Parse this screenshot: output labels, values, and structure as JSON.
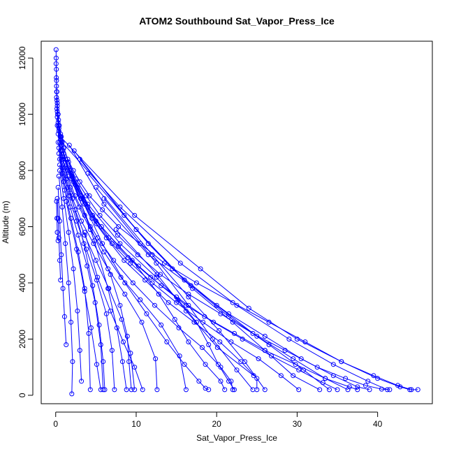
{
  "chart_data": {
    "type": "line",
    "title": "ATOM2 Southbound Sat_Vapor_Press_Ice",
    "xlabel": "Sat_Vapor_Press_Ice",
    "ylabel": "Altitude (m)",
    "xlim": [
      -1.8,
      46.8
    ],
    "ylim": [
      -300,
      12600
    ],
    "x_ticks": [
      0,
      10,
      20,
      30,
      40
    ],
    "y_ticks": [
      0,
      2000,
      4000,
      6000,
      8000,
      10000,
      12000
    ],
    "grid": false,
    "legend": "none",
    "line_color": "#0000ff",
    "marker": "open-circle",
    "series": [
      {
        "x": [
          0.05,
          0.06,
          0.08,
          0.1,
          0.15,
          0.2,
          0.3,
          0.45,
          0.7,
          1.0,
          1.5,
          2.2,
          3.0,
          4.2,
          5.8,
          7.8,
          10.5,
          13.5,
          17.5,
          22.0,
          26.5,
          31.0,
          35.5,
          39.5,
          42.5,
          44.2,
          45.0
        ],
        "y": [
          12300,
          12000,
          11600,
          11200,
          10800,
          10400,
          10000,
          9600,
          9200,
          8800,
          8400,
          8000,
          7600,
          7100,
          6600,
          6000,
          5400,
          4700,
          4000,
          3300,
          2600,
          1900,
          1200,
          700,
          350,
          200,
          200
        ]
      },
      {
        "x": [
          0.05,
          0.08,
          0.12,
          0.2,
          0.35,
          0.6,
          1.0,
          1.6,
          2.5,
          3.8,
          5.5,
          7.7,
          10.2,
          13.0,
          16.5,
          20.5,
          24.5,
          28.5,
          32.5,
          36.0,
          38.5,
          40.5,
          41.5
        ],
        "y": [
          11800,
          11300,
          10800,
          10300,
          9800,
          9300,
          8800,
          8300,
          7700,
          7100,
          6400,
          5700,
          5000,
          4300,
          3600,
          2900,
          2200,
          1600,
          1000,
          600,
          350,
          220,
          200
        ]
      },
      {
        "x": [
          0.1,
          0.15,
          0.25,
          0.4,
          0.7,
          1.2,
          2.0,
          3.1,
          4.6,
          6.6,
          9.0,
          11.8,
          15.0,
          18.5,
          22.2,
          26.0,
          29.8,
          33.5,
          36.5,
          37.5
        ],
        "y": [
          11000,
          10500,
          10000,
          9500,
          9000,
          8400,
          7800,
          7100,
          6400,
          5600,
          4900,
          4200,
          3500,
          2800,
          2200,
          1600,
          1100,
          600,
          300,
          200
        ]
      },
      {
        "x": [
          0.1,
          0.2,
          0.35,
          0.6,
          1.0,
          1.7,
          2.7,
          4.0,
          5.7,
          7.8,
          10.3,
          13.1,
          16.2,
          19.6,
          23.2,
          26.8,
          30.2,
          33.2,
          35.0
        ],
        "y": [
          10600,
          10100,
          9600,
          9100,
          8600,
          8000,
          7400,
          6700,
          6000,
          5300,
          4600,
          3900,
          3200,
          2600,
          2000,
          1400,
          900,
          450,
          200
        ]
      },
      {
        "x": [
          0.15,
          0.3,
          0.55,
          0.9,
          1.5,
          2.4,
          3.6,
          5.1,
          7.0,
          9.3,
          12.0,
          15.0,
          18.3,
          21.8,
          25.2,
          28.0,
          30.2
        ],
        "y": [
          10200,
          9700,
          9200,
          8700,
          8100,
          7500,
          6800,
          6100,
          5400,
          4700,
          4000,
          3300,
          2600,
          1900,
          1300,
          700,
          200
        ]
      },
      {
        "x": [
          0.2,
          0.4,
          0.7,
          1.2,
          2.0,
          3.1,
          4.5,
          6.3,
          8.5,
          11.1,
          14.0,
          17.2,
          20.4,
          23.0,
          25.0,
          25.0
        ],
        "y": [
          9900,
          9400,
          8900,
          8300,
          7700,
          7000,
          6300,
          5600,
          4800,
          4100,
          3300,
          2600,
          1900,
          1200,
          600,
          200
        ]
      },
      {
        "x": [
          0.2,
          0.5,
          0.9,
          1.5,
          2.4,
          3.6,
          5.2,
          7.2,
          9.6,
          12.3,
          15.3,
          18.2,
          20.5,
          21.8,
          22.0
        ],
        "y": [
          9600,
          9000,
          8400,
          7800,
          7100,
          6400,
          5600,
          4800,
          4000,
          3200,
          2400,
          1700,
          1000,
          500,
          200
        ]
      },
      {
        "x": [
          0.3,
          0.6,
          1.1,
          1.8,
          2.9,
          4.3,
          6.0,
          8.1,
          10.5,
          13.1,
          15.4,
          16.2
        ],
        "y": [
          9300,
          8700,
          8100,
          7400,
          6700,
          5900,
          5100,
          4200,
          3400,
          2500,
          1400,
          200
        ]
      },
      {
        "x": [
          0.3,
          0.7,
          1.3,
          2.1,
          3.2,
          4.7,
          6.5,
          8.6,
          10.7,
          12.4,
          12.6
        ],
        "y": [
          9000,
          8400,
          7700,
          7000,
          6200,
          5400,
          4500,
          3600,
          2600,
          1300,
          200
        ]
      },
      {
        "x": [
          0.4,
          0.8,
          1.5,
          2.4,
          3.6,
          5.0,
          6.6,
          8.2,
          9.3,
          9.8
        ],
        "y": [
          8800,
          8100,
          7400,
          6600,
          5700,
          4800,
          3800,
          2700,
          1500,
          200
        ]
      },
      {
        "x": [
          0.4,
          0.9,
          1.6,
          2.6,
          3.8,
          5.1,
          6.3,
          7.0,
          7.3
        ],
        "y": [
          8600,
          7900,
          7100,
          6200,
          5200,
          4100,
          2900,
          1600,
          200
        ]
      },
      {
        "x": [
          0.5,
          1.0,
          1.8,
          2.8,
          3.9,
          4.9,
          5.6,
          5.9
        ],
        "y": [
          8400,
          7600,
          6700,
          5700,
          4600,
          3300,
          1800,
          200
        ]
      },
      {
        "x": [
          0.5,
          1.1,
          1.9,
          2.8,
          3.6,
          4.1,
          4.3
        ],
        "y": [
          8200,
          7300,
          6300,
          5100,
          3800,
          2200,
          200
        ]
      },
      {
        "x": [
          0.5,
          1.0,
          1.6,
          2.2,
          2.7,
          3.0,
          3.2
        ],
        "y": [
          8000,
          7000,
          5800,
          4500,
          3000,
          1600,
          500
        ]
      },
      {
        "x": [
          0.4,
          0.8,
          1.2,
          1.6,
          1.9,
          2.1,
          2.0
        ],
        "y": [
          7800,
          6700,
          5400,
          4000,
          2600,
          1200,
          50
        ]
      },
      {
        "x": [
          0.3,
          0.5,
          0.7,
          0.9,
          1.1,
          1.3
        ],
        "y": [
          7400,
          6200,
          5000,
          3800,
          2800,
          1800
        ]
      },
      {
        "x": [
          0.2,
          0.3,
          0.4,
          0.5,
          0.6
        ],
        "y": [
          7000,
          6300,
          5600,
          4800,
          4100
        ]
      },
      {
        "x": [
          0.1,
          0.15,
          0.2,
          0.3
        ],
        "y": [
          6900,
          6300,
          5800,
          5500
        ]
      },
      {
        "x": [
          0.9,
          4.0,
          8.0,
          12.5,
          15.2,
          17.5,
          19.0,
          20.2,
          21.5,
          22.2
        ],
        "y": [
          8500,
          6800,
          5400,
          4200,
          3400,
          2600,
          1800,
          1100,
          500,
          200
        ]
      },
      {
        "x": [
          1.2,
          5.0,
          9.5,
          12.8,
          14.8,
          16.5,
          18.6,
          20.5,
          21.0
        ],
        "y": [
          8300,
          6200,
          4800,
          3600,
          2700,
          1900,
          1100,
          500,
          200
        ]
      },
      {
        "x": [
          1.5,
          4.3,
          6.8,
          8.0,
          8.9,
          9.1,
          9.4
        ],
        "y": [
          8000,
          6000,
          4300,
          3200,
          2100,
          1200,
          200
        ]
      },
      {
        "x": [
          2.2,
          4.8,
          6.5,
          7.6,
          8.3,
          8.8
        ],
        "y": [
          7600,
          5500,
          3800,
          2400,
          1200,
          200
        ]
      },
      {
        "x": [
          1.8,
          3.5,
          4.6,
          5.4,
          5.9,
          6.1
        ],
        "y": [
          7200,
          5400,
          3900,
          2500,
          1200,
          200
        ]
      },
      {
        "x": [
          1.3,
          2.6,
          3.6,
          4.4,
          5.1,
          5.6
        ],
        "y": [
          6900,
          5200,
          3700,
          2400,
          1100,
          200
        ]
      },
      {
        "x": [
          1.0,
          3.2,
          5.8,
          8.6,
          11.3,
          13.8,
          16.0,
          17.8,
          18.6,
          19.0
        ],
        "y": [
          8800,
          7000,
          5400,
          4000,
          2900,
          1900,
          1100,
          500,
          250,
          200
        ]
      },
      {
        "x": [
          1.7,
          6.0,
          11.5,
          16.8,
          21.5,
          26.0,
          30.5,
          34.5,
          37.5,
          39.0
        ],
        "y": [
          8900,
          6800,
          5000,
          3900,
          2900,
          2100,
          1300,
          700,
          300,
          200
        ]
      },
      {
        "x": [
          2.3,
          8.5,
          14.5,
          20.0,
          25.0,
          29.5,
          33.5,
          36.3
        ],
        "y": [
          8700,
          6400,
          4500,
          3200,
          2100,
          1300,
          600,
          200
        ]
      },
      {
        "x": [
          3.0,
          10.0,
          16.0,
          21.5,
          26.5,
          30.8,
          34.0
        ],
        "y": [
          8400,
          5900,
          4100,
          2800,
          1800,
          900,
          200
        ]
      },
      {
        "x": [
          4.0,
          11.5,
          17.0,
          22.0,
          26.0,
          29.5,
          32.8
        ],
        "y": [
          7900,
          5400,
          3800,
          2600,
          1600,
          700,
          200
        ]
      },
      {
        "x": [
          5.0,
          12.0,
          16.5,
          20.3,
          23.5,
          26.0
        ],
        "y": [
          7400,
          5000,
          3500,
          2300,
          1200,
          200
        ]
      },
      {
        "x": [
          6.0,
          12.5,
          16.5,
          19.5,
          22.5,
          24.5
        ],
        "y": [
          7000,
          4700,
          3200,
          2000,
          900,
          200
        ]
      },
      {
        "x": [
          0.6,
          9.8,
          18.0,
          24.0,
          30.0,
          35.5,
          40.0,
          42.8,
          44.0
        ],
        "y": [
          9200,
          6400,
          4500,
          3100,
          2000,
          1200,
          600,
          300,
          200
        ]
      },
      {
        "x": [
          0.8,
          8.0,
          15.5,
          22.5,
          29.0,
          34.5,
          38.8,
          41.2
        ],
        "y": [
          9000,
          6700,
          4700,
          3200,
          2000,
          1100,
          500,
          200
        ]
      },
      {
        "x": [
          7.5,
          12.6,
          16.2,
          20.1,
          24.6
        ],
        "y": [
          5900,
          4300,
          3000,
          1700,
          700
        ]
      },
      {
        "x": [
          3.6,
          5.2,
          6.8,
          8.4,
          9.8,
          10.8
        ],
        "y": [
          5800,
          4200,
          3000,
          1900,
          1000,
          200
        ]
      }
    ]
  }
}
